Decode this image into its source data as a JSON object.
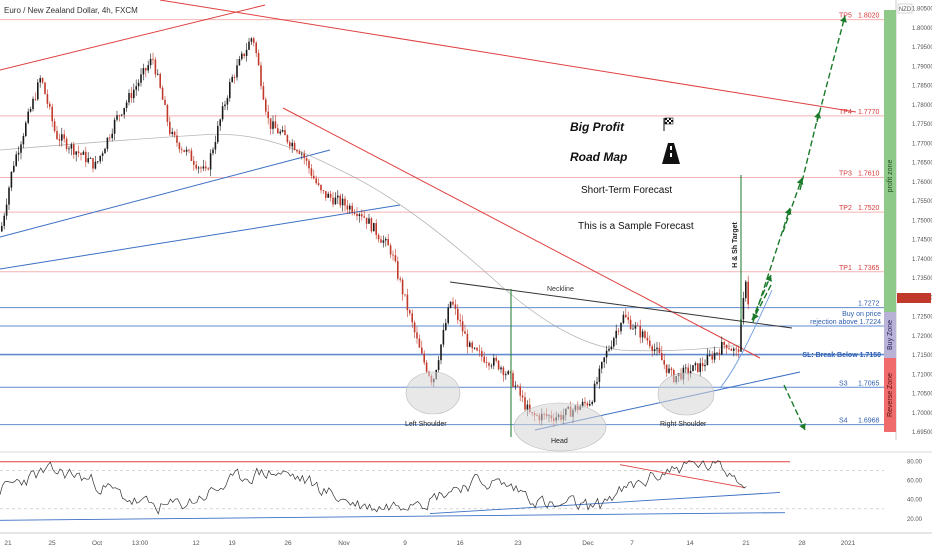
{
  "header": {
    "symbol_title": "Euro / New Zealand Dollar, 4h, FXCM",
    "currency_label": "NZD"
  },
  "colors": {
    "up_candle": "#1b1b1b",
    "down_candle": "#c0392b",
    "level_line": "#f3a9a9",
    "blue_line": "#3a6fc4",
    "trend_red": "#e04040",
    "profit_zone": "#8fc98a",
    "buy_zone": "#b8b3d6",
    "reverse_zone": "#f06b6b",
    "forecast_green": "#1a7a2a"
  },
  "chart_data": {
    "type": "candlestick",
    "y_range": [
      1.6915,
      1.8045
    ],
    "y_ticks": [
      "1.80500",
      "1.80000",
      "1.79500",
      "1.79000",
      "1.78500",
      "1.78000",
      "1.77500",
      "1.77000",
      "1.76500",
      "1.76000",
      "1.75500",
      "1.75000",
      "1.74500",
      "1.74000",
      "1.73500",
      "1.73000",
      "1.72500",
      "1.72000",
      "1.71500",
      "1.71000",
      "1.70500",
      "1.70000",
      "1.69500",
      "1.69000"
    ],
    "x_ticks": [
      "21",
      "25",
      "Oct",
      "13:00",
      "12",
      "19",
      "26",
      "Nov",
      "9",
      "16",
      "23",
      "Dec",
      "7",
      "14",
      "21",
      "28",
      "2021"
    ],
    "levels": [
      {
        "label": "TP5",
        "value": "1.8020",
        "color": "red"
      },
      {
        "label": "TP4",
        "value": "1.7770",
        "color": "red"
      },
      {
        "label": "TP3",
        "value": "1.7610",
        "color": "red"
      },
      {
        "label": "TP2",
        "value": "1.7520",
        "color": "red"
      },
      {
        "label": "TP1",
        "value": "1.7365",
        "color": "red"
      },
      {
        "label": "",
        "value": "1.7272",
        "color": "blue"
      },
      {
        "label": "",
        "value": "1.7224",
        "color": "blue"
      },
      {
        "label": "",
        "value": "1.7150",
        "color": "blue"
      },
      {
        "label": "S3",
        "value": "1.7065",
        "color": "blue"
      },
      {
        "label": "S4",
        "value": "1.6968",
        "color": "blue"
      }
    ],
    "annotations": {
      "buy_line1": "Buy on price",
      "buy_line2": "rejection above 1.7224",
      "sl": "SL: Break Below 1.7150",
      "neckline": "Neckline",
      "left_shoulder": "Left Shoulder",
      "head": "Head",
      "right_shoulder": "Right Shoulder",
      "target": "H & Sh Target",
      "big_profit": "Big Profit",
      "road_map": "Road Map",
      "short_term": "Short-Term Forecast",
      "sample": "This is a Sample Forecast"
    },
    "zones": {
      "profit": "profit zone",
      "buy": "Buy Zone",
      "reverse": "Reverse Zone"
    },
    "rsi": {
      "y_ticks": [
        "80.00",
        "60.00",
        "40.00",
        "20.00"
      ]
    }
  }
}
